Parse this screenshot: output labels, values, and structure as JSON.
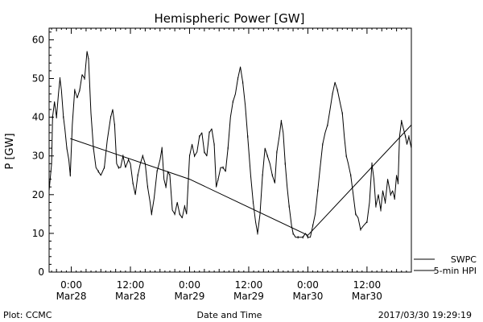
{
  "chart_data": {
    "type": "line",
    "title": "Hemispheric Power [GW]",
    "ylabel": "P [GW]",
    "xlabel": "Date and Time",
    "ylim": [
      0,
      63
    ],
    "y_ticks": [
      0,
      10,
      20,
      30,
      40,
      50,
      60
    ],
    "x_ticks": [
      {
        "t": 0,
        "line1": "0:00",
        "line2": "Mar28"
      },
      {
        "t": 12,
        "line1": "12:00",
        "line2": "Mar28"
      },
      {
        "t": 24,
        "line1": "0:00",
        "line2": "Mar29"
      },
      {
        "t": 36,
        "line1": "12:00",
        "line2": "Mar29"
      },
      {
        "t": 48,
        "line1": "0:00",
        "line2": "Mar30"
      },
      {
        "t": 60,
        "line1": "12:00",
        "line2": "Mar30"
      }
    ],
    "x_range_hours": [
      -4.5,
      69
    ],
    "series": [
      {
        "name": "SWPC",
        "style": "ticked",
        "points": [
          [
            -4.5,
            21
          ],
          [
            -4,
            28
          ],
          [
            -3.8,
            40
          ],
          [
            -3.4,
            44
          ],
          [
            -3,
            40
          ],
          [
            -2.6,
            46
          ],
          [
            -2.3,
            50
          ],
          [
            -2,
            47
          ],
          [
            -1.6,
            40
          ],
          [
            -1.3,
            37
          ],
          [
            -0.9,
            32
          ],
          [
            -0.5,
            29
          ],
          [
            -0.2,
            25
          ],
          [
            0.2,
            38
          ],
          [
            0.7,
            47
          ],
          [
            1.2,
            45
          ],
          [
            1.7,
            47
          ],
          [
            2.2,
            51
          ],
          [
            2.7,
            50
          ],
          [
            3.2,
            57
          ],
          [
            3.5,
            55
          ],
          [
            4,
            41
          ],
          [
            4.5,
            32
          ],
          [
            5,
            27
          ],
          [
            5.5,
            26
          ],
          [
            6,
            25
          ],
          [
            6.7,
            27
          ],
          [
            7.3,
            34
          ],
          [
            8,
            40
          ],
          [
            8.4,
            42
          ],
          [
            8.8,
            38
          ],
          [
            9.2,
            28
          ],
          [
            9.6,
            27
          ],
          [
            10,
            27
          ],
          [
            10.5,
            30
          ],
          [
            11,
            27
          ],
          [
            11.6,
            29
          ],
          [
            12,
            28
          ],
          [
            12.5,
            23
          ],
          [
            13,
            20
          ],
          [
            13.5,
            25
          ],
          [
            14,
            28
          ],
          [
            14.5,
            30
          ],
          [
            15,
            28
          ],
          [
            15.5,
            22
          ],
          [
            16,
            18
          ],
          [
            16.3,
            15
          ],
          [
            16.8,
            19
          ],
          [
            17.4,
            26
          ],
          [
            18,
            29
          ],
          [
            18.4,
            32
          ],
          [
            18.8,
            24
          ],
          [
            19.2,
            22
          ],
          [
            19.6,
            26
          ],
          [
            20,
            25
          ],
          [
            20.5,
            16
          ],
          [
            21,
            15
          ],
          [
            21.5,
            18
          ],
          [
            22,
            15
          ],
          [
            22.5,
            14
          ],
          [
            23,
            17
          ],
          [
            23.4,
            15
          ],
          [
            24,
            30
          ],
          [
            24.5,
            33
          ],
          [
            25,
            30
          ],
          [
            25.5,
            31
          ],
          [
            26,
            35
          ],
          [
            26.5,
            36
          ],
          [
            27,
            31
          ],
          [
            27.5,
            30
          ],
          [
            28,
            36
          ],
          [
            28.5,
            37
          ],
          [
            29,
            33
          ],
          [
            29.4,
            22
          ],
          [
            29.8,
            24
          ],
          [
            30.3,
            27
          ],
          [
            30.8,
            27
          ],
          [
            31.3,
            26
          ],
          [
            31.8,
            32
          ],
          [
            32.3,
            40
          ],
          [
            32.8,
            44
          ],
          [
            33.3,
            46
          ],
          [
            33.8,
            50
          ],
          [
            34.3,
            53
          ],
          [
            34.8,
            49
          ],
          [
            35.3,
            43
          ],
          [
            35.8,
            35
          ],
          [
            36.4,
            25
          ],
          [
            36.9,
            18
          ],
          [
            37.4,
            13
          ],
          [
            37.8,
            10
          ],
          [
            38.3,
            15
          ],
          [
            38.8,
            25
          ],
          [
            39.3,
            32
          ],
          [
            39.8,
            30
          ],
          [
            40.3,
            28
          ],
          [
            40.8,
            25
          ],
          [
            41.3,
            23
          ],
          [
            41.7,
            31
          ],
          [
            42.2,
            35
          ],
          [
            42.6,
            39
          ],
          [
            43,
            36
          ],
          [
            43.4,
            28
          ],
          [
            43.8,
            22
          ],
          [
            44.2,
            17
          ],
          [
            44.7,
            12
          ],
          [
            45,
            10
          ],
          [
            45.5,
            9
          ],
          [
            46,
            9
          ],
          [
            46.5,
            9
          ],
          [
            47,
            9
          ],
          [
            47.5,
            10
          ],
          [
            48,
            9
          ],
          [
            48.5,
            9
          ],
          [
            49,
            12
          ],
          [
            49.5,
            15
          ],
          [
            50,
            21
          ],
          [
            50.5,
            27
          ],
          [
            51,
            33
          ],
          [
            51.5,
            36
          ],
          [
            52,
            38
          ],
          [
            52.5,
            42
          ],
          [
            53,
            46
          ],
          [
            53.5,
            49
          ],
          [
            54,
            47
          ],
          [
            54.5,
            44
          ],
          [
            55,
            41
          ],
          [
            55.4,
            35
          ],
          [
            55.8,
            30
          ],
          [
            56.2,
            28
          ],
          [
            56.7,
            25
          ],
          [
            57.2,
            20
          ],
          [
            57.7,
            15
          ],
          [
            58.2,
            14
          ],
          [
            58.7,
            11
          ],
          [
            59.3,
            12
          ],
          [
            60,
            13
          ],
          [
            60.5,
            18
          ],
          [
            61,
            28
          ],
          [
            61.4,
            24
          ],
          [
            61.8,
            17
          ],
          [
            62.3,
            20
          ],
          [
            62.8,
            16
          ],
          [
            63.2,
            21
          ],
          [
            63.7,
            18
          ],
          [
            64.2,
            24
          ],
          [
            64.8,
            20
          ],
          [
            65.2,
            21
          ],
          [
            65.6,
            19
          ],
          [
            66,
            25
          ],
          [
            66.3,
            23
          ],
          [
            66.6,
            35
          ],
          [
            67,
            39
          ],
          [
            67.4,
            37
          ],
          [
            67.8,
            35
          ],
          [
            68.1,
            33
          ],
          [
            68.5,
            35
          ],
          [
            69,
            32
          ]
        ]
      },
      {
        "name": "5-min HPI",
        "style": "plain",
        "points": [
          [
            -0.2,
            34.5
          ],
          [
            24,
            24
          ],
          [
            48,
            9.5
          ],
          [
            69,
            38
          ]
        ]
      }
    ]
  },
  "footer": {
    "left": "Plot: CCMC",
    "center": "Date and Time",
    "right": "2017/03/30 19:29:19"
  }
}
